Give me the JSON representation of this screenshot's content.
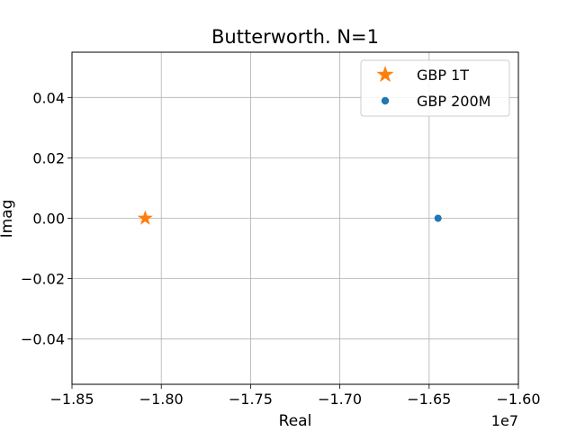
{
  "chart_data": {
    "type": "scatter",
    "title": "Butterworth. N=1",
    "xlabel": "Real",
    "ylabel": "Imag",
    "x_offset_label": "1e7",
    "xlim": [
      -1.85,
      -1.6
    ],
    "ylim": [
      -0.055,
      0.055
    ],
    "x_ticks": [
      -1.85,
      -1.8,
      -1.75,
      -1.7,
      -1.65,
      -1.6
    ],
    "x_tick_labels": [
      "−1.85",
      "−1.80",
      "−1.75",
      "−1.70",
      "−1.65",
      "−1.60"
    ],
    "y_ticks": [
      -0.04,
      -0.02,
      0.0,
      0.02,
      0.04
    ],
    "y_tick_labels": [
      "−0.04",
      "−0.02",
      "0.00",
      "0.02",
      "0.04"
    ],
    "grid": true,
    "legend_position": "upper right",
    "series": [
      {
        "name": "GBP 1T",
        "marker": "star",
        "color": "#ff7f0e",
        "x": [
          -1.809
        ],
        "y": [
          0.0
        ]
      },
      {
        "name": "GBP 200M",
        "marker": "circle",
        "color": "#1f77b4",
        "x": [
          -1.645
        ],
        "y": [
          0.0
        ]
      }
    ]
  }
}
